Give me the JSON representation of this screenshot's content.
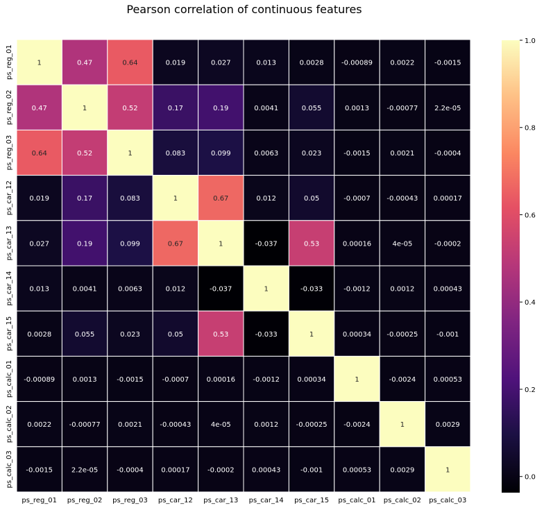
{
  "chart_data": {
    "type": "heatmap",
    "title": "Pearson correlation of continuous features",
    "labels": [
      "ps_reg_01",
      "ps_reg_02",
      "ps_reg_03",
      "ps_car_12",
      "ps_car_13",
      "ps_car_14",
      "ps_car_15",
      "ps_calc_01",
      "ps_calc_02",
      "ps_calc_03"
    ],
    "matrix": [
      [
        "1",
        "0.47",
        "0.64",
        "0.019",
        "0.027",
        "0.013",
        "0.0028",
        "-0.00089",
        "0.0022",
        "-0.0015"
      ],
      [
        "0.47",
        "1",
        "0.52",
        "0.17",
        "0.19",
        "0.0041",
        "0.055",
        "0.0013",
        "-0.00077",
        "2.2e-05"
      ],
      [
        "0.64",
        "0.52",
        "1",
        "0.083",
        "0.099",
        "0.0063",
        "0.023",
        "-0.0015",
        "0.0021",
        "-0.0004"
      ],
      [
        "0.019",
        "0.17",
        "0.083",
        "1",
        "0.67",
        "0.012",
        "0.05",
        "-0.0007",
        "-0.00043",
        "0.00017"
      ],
      [
        "0.027",
        "0.19",
        "0.099",
        "0.67",
        "1",
        "-0.037",
        "0.53",
        "0.00016",
        "4e-05",
        "-0.0002"
      ],
      [
        "0.013",
        "0.0041",
        "0.0063",
        "0.012",
        "-0.037",
        "1",
        "-0.033",
        "-0.0012",
        "0.0012",
        "0.00043"
      ],
      [
        "0.0028",
        "0.055",
        "0.023",
        "0.05",
        "0.53",
        "-0.033",
        "1",
        "0.00034",
        "-0.00025",
        "-0.001"
      ],
      [
        "-0.00089",
        "0.0013",
        "-0.0015",
        "-0.0007",
        "0.00016",
        "-0.0012",
        "0.00034",
        "1",
        "-0.0024",
        "0.00053"
      ],
      [
        "0.0022",
        "-0.00077",
        "0.0021",
        "-0.00043",
        "4e-05",
        "0.0012",
        "-0.00025",
        "-0.0024",
        "1",
        "0.0029"
      ],
      [
        "-0.0015",
        "2.2e-05",
        "-0.0004",
        "0.00017",
        "-0.0002",
        "0.00043",
        "-0.001",
        "0.00053",
        "0.0029",
        "1"
      ]
    ],
    "vmin": -0.037,
    "vmax": 1.0,
    "colormap": "magma",
    "colorbar_ticks": [
      "0.0",
      "0.2",
      "0.4",
      "0.6",
      "0.8",
      "1.0"
    ],
    "grid": true,
    "grid_color": "#ffffff"
  }
}
